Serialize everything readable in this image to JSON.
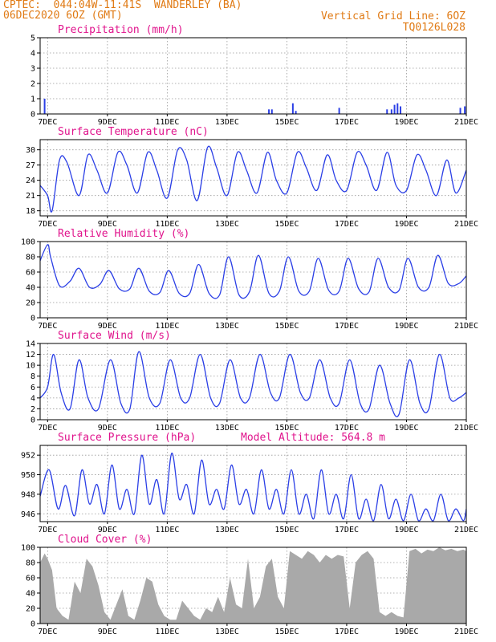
{
  "header": {
    "line1_left": "CPTEC:  044:04W-11:41S  WANDERLEY (BA)",
    "line2_left": "06DEC2020 6OZ (GMT)",
    "line1_right": "Vertical Grid Line: 6OZ",
    "line2_right": "TQ0126L028"
  },
  "colors": {
    "line": "#2b3fe6",
    "title": "#e0138c",
    "header": "#e07a14",
    "cloud": "#a9a9a9"
  },
  "x_axis": {
    "ticks": [
      "7DEC",
      "9DEC",
      "11DEC",
      "13DEC",
      "15DEC",
      "17DEC",
      "19DEC",
      "21DEC"
    ],
    "range_days": [
      0.75,
      15.0
    ]
  },
  "chart_data": [
    {
      "type": "bar",
      "title": "Precipitation (mm/h)",
      "ylim": [
        0,
        5
      ],
      "yticks": [
        0,
        1,
        2,
        3,
        4,
        5
      ],
      "x": [
        0.9,
        8.4,
        8.5,
        9.2,
        9.3,
        10.75,
        12.35,
        12.5,
        12.6,
        12.7,
        12.8,
        14.8,
        14.95
      ],
      "values": [
        1.0,
        0.3,
        0.3,
        0.7,
        0.2,
        0.4,
        0.3,
        0.3,
        0.6,
        0.7,
        0.5,
        0.4,
        0.5
      ]
    },
    {
      "type": "line",
      "title": "Surface Temperature (nC)",
      "ylim": [
        17,
        32
      ],
      "yticks": [
        18,
        21,
        24,
        27,
        30
      ],
      "x": [
        0.75,
        1.0,
        1.15,
        1.4,
        1.65,
        2.05,
        2.35,
        2.65,
        3.0,
        3.35,
        3.65,
        4.0,
        4.35,
        4.65,
        5.0,
        5.35,
        5.65,
        6.0,
        6.35,
        6.65,
        7.0,
        7.35,
        7.65,
        8.0,
        8.35,
        8.65,
        9.0,
        9.35,
        9.65,
        10.0,
        10.35,
        10.65,
        11.0,
        11.35,
        11.65,
        12.0,
        12.35,
        12.65,
        13.0,
        13.35,
        13.65,
        14.0,
        14.35,
        14.65,
        15.0
      ],
      "values": [
        23,
        21,
        18,
        28,
        27.5,
        21,
        29,
        26,
        21.5,
        29.5,
        27,
        21.5,
        29.5,
        26,
        20.5,
        30,
        28,
        20,
        30.5,
        26.5,
        21,
        29.5,
        26,
        21.5,
        29.5,
        24,
        21.5,
        29.5,
        26.5,
        22,
        29,
        24,
        22,
        29.5,
        27,
        22,
        29.5,
        23,
        22,
        29,
        26,
        21,
        28,
        21.5,
        26
      ]
    },
    {
      "type": "line",
      "title": "Relative Humidity (%)",
      "ylim": [
        0,
        100
      ],
      "yticks": [
        0,
        20,
        40,
        60,
        80,
        100
      ],
      "x": [
        0.75,
        1.0,
        1.1,
        1.4,
        1.75,
        2.05,
        2.4,
        2.75,
        3.05,
        3.4,
        3.75,
        4.05,
        4.4,
        4.75,
        5.05,
        5.4,
        5.75,
        6.05,
        6.4,
        6.75,
        7.05,
        7.4,
        7.75,
        8.05,
        8.4,
        8.75,
        9.05,
        9.4,
        9.75,
        10.05,
        10.4,
        10.75,
        11.05,
        11.4,
        11.75,
        12.05,
        12.4,
        12.75,
        13.05,
        13.4,
        13.75,
        14.05,
        14.4,
        14.75,
        15.0
      ],
      "values": [
        75,
        96,
        80,
        42,
        48,
        65,
        40,
        44,
        62,
        38,
        38,
        65,
        35,
        33,
        62,
        32,
        32,
        70,
        32,
        30,
        80,
        30,
        34,
        82,
        32,
        35,
        80,
        35,
        35,
        78,
        36,
        35,
        78,
        38,
        34,
        78,
        40,
        36,
        78,
        40,
        40,
        82,
        45,
        45,
        55
      ]
    },
    {
      "type": "line",
      "title": "Surface Wind (m/s)",
      "ylim": [
        0,
        14
      ],
      "yticks": [
        0,
        2,
        4,
        6,
        8,
        10,
        12,
        14
      ],
      "x": [
        0.75,
        1.0,
        1.2,
        1.45,
        1.75,
        2.05,
        2.35,
        2.7,
        3.1,
        3.45,
        3.75,
        4.05,
        4.4,
        4.75,
        5.1,
        5.45,
        5.75,
        6.1,
        6.45,
        6.75,
        7.1,
        7.45,
        7.75,
        8.1,
        8.45,
        8.75,
        9.1,
        9.45,
        9.75,
        10.1,
        10.45,
        10.75,
        11.1,
        11.45,
        11.75,
        12.1,
        12.45,
        12.75,
        13.1,
        13.45,
        13.75,
        14.1,
        14.45,
        14.75,
        15.0
      ],
      "values": [
        4,
        6,
        12,
        5,
        2,
        11,
        4,
        2,
        11,
        3,
        2,
        12.5,
        4,
        3,
        11,
        4,
        4,
        12,
        4,
        3,
        11,
        4,
        4,
        12,
        5,
        4,
        12,
        5,
        4,
        11,
        4,
        3,
        11,
        3,
        2,
        10,
        3,
        1,
        11,
        3,
        2,
        12,
        4,
        4,
        5
      ]
    },
    {
      "type": "line",
      "title": "Surface Pressure (hPa)",
      "annotation": "Model Altitude: 564.8 m",
      "ylim": [
        945.2,
        953
      ],
      "yticks": [
        946,
        948,
        950,
        952
      ],
      "x": [
        0.75,
        1.05,
        1.35,
        1.6,
        1.9,
        2.15,
        2.4,
        2.65,
        2.9,
        3.15,
        3.4,
        3.65,
        3.9,
        4.15,
        4.4,
        4.65,
        4.9,
        5.15,
        5.4,
        5.65,
        5.9,
        6.15,
        6.4,
        6.65,
        6.9,
        7.15,
        7.4,
        7.65,
        7.9,
        8.15,
        8.4,
        8.65,
        8.9,
        9.15,
        9.4,
        9.65,
        9.9,
        10.15,
        10.4,
        10.65,
        10.9,
        11.15,
        11.4,
        11.65,
        11.9,
        12.15,
        12.4,
        12.65,
        12.9,
        13.15,
        13.4,
        13.65,
        13.9,
        14.15,
        14.4,
        14.65,
        14.9,
        15.0
      ],
      "values": [
        947.8,
        950.5,
        946.5,
        948.9,
        945.8,
        950.5,
        947.0,
        949.0,
        946.0,
        951.0,
        946.5,
        948.5,
        946.0,
        952.0,
        947.0,
        949.5,
        946.0,
        952.2,
        947.5,
        949.0,
        946.0,
        951.5,
        947.0,
        948.5,
        946.5,
        951.0,
        947.0,
        948.5,
        946.0,
        950.5,
        946.5,
        948.5,
        946.0,
        950.5,
        946.0,
        948.0,
        945.5,
        950.5,
        946.0,
        948.0,
        945.5,
        950.0,
        945.5,
        947.5,
        945.3,
        949.0,
        945.5,
        947.5,
        945.3,
        948.0,
        945.3,
        946.5,
        945.3,
        948.0,
        945.3,
        946.5,
        945.3,
        946.5
      ]
    },
    {
      "type": "area",
      "title": "Cloud Cover (%)",
      "ylim": [
        0,
        100
      ],
      "yticks": [
        0,
        20,
        40,
        60,
        80,
        100
      ],
      "x": [
        0.75,
        0.9,
        1.0,
        1.15,
        1.3,
        1.5,
        1.7,
        1.9,
        2.1,
        2.3,
        2.5,
        2.7,
        2.9,
        3.1,
        3.3,
        3.5,
        3.7,
        3.9,
        4.1,
        4.3,
        4.5,
        4.7,
        4.9,
        5.1,
        5.3,
        5.5,
        5.7,
        5.9,
        6.1,
        6.3,
        6.5,
        6.7,
        6.9,
        7.1,
        7.3,
        7.5,
        7.7,
        7.9,
        8.1,
        8.3,
        8.5,
        8.7,
        8.9,
        9.1,
        9.3,
        9.5,
        9.7,
        9.9,
        10.1,
        10.3,
        10.5,
        10.7,
        10.9,
        11.1,
        11.3,
        11.5,
        11.7,
        11.9,
        12.1,
        12.3,
        12.5,
        12.7,
        12.9,
        13.1,
        13.3,
        13.5,
        13.7,
        13.9,
        14.1,
        14.3,
        14.5,
        14.7,
        14.9,
        15.0
      ],
      "values": [
        80,
        92,
        85,
        70,
        20,
        10,
        5,
        55,
        40,
        85,
        75,
        50,
        15,
        5,
        25,
        45,
        10,
        5,
        30,
        60,
        55,
        25,
        10,
        5,
        5,
        30,
        20,
        10,
        5,
        20,
        15,
        35,
        15,
        60,
        25,
        20,
        85,
        20,
        35,
        75,
        85,
        35,
        20,
        95,
        90,
        85,
        95,
        90,
        80,
        90,
        85,
        90,
        88,
        20,
        80,
        90,
        95,
        85,
        15,
        10,
        15,
        10,
        8,
        95,
        98,
        92,
        97,
        95,
        100,
        96,
        98,
        95,
        97,
        95
      ]
    }
  ]
}
